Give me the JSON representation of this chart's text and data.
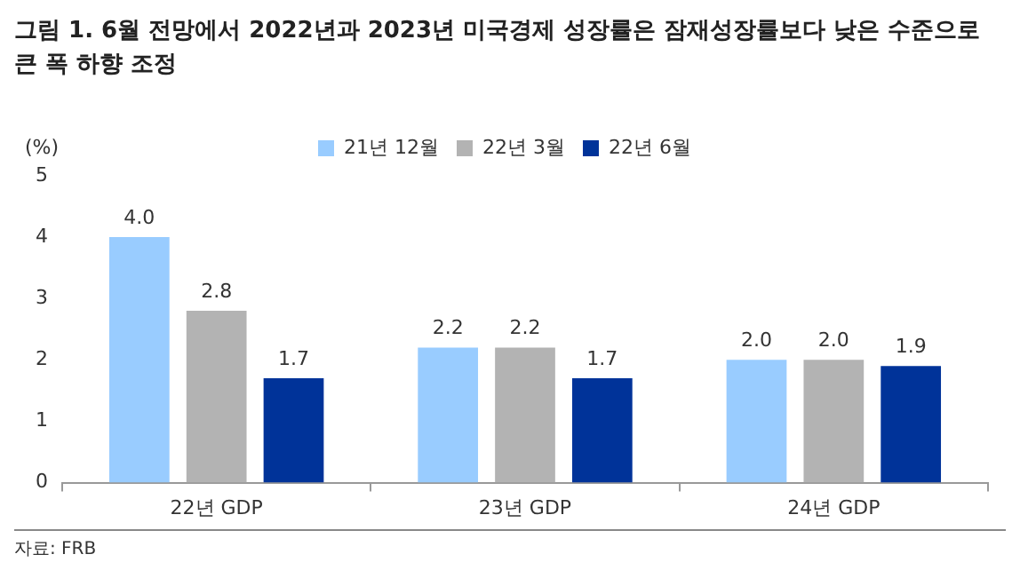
{
  "chart_data": {
    "type": "bar",
    "title": "그림 1. 6월 전망에서 2022년과 2023년 미국경제 성장률은 잠재성장률보다 낮은 수준으로 큰 폭 하향 조정",
    "ylabel": "(%)",
    "categories": [
      "22년 GDP",
      "23년 GDP",
      "24년 GDP"
    ],
    "series": [
      {
        "name": "21년 12월",
        "color": "#99ccff",
        "values": [
          4.0,
          2.2,
          2.0
        ],
        "value_labels": [
          "4.0",
          "2.2",
          "2.0"
        ]
      },
      {
        "name": "22년 3월",
        "color": "#b3b3b3",
        "values": [
          2.8,
          2.2,
          2.0
        ],
        "value_labels": [
          "2.8",
          "2.2",
          "2.0"
        ]
      },
      {
        "name": "22년 6월",
        "color": "#003399",
        "values": [
          1.7,
          1.7,
          1.9
        ],
        "value_labels": [
          "1.7",
          "1.7",
          "1.9"
        ]
      }
    ],
    "ylim": [
      0,
      5
    ],
    "yticks": [
      0,
      1,
      2,
      3,
      4,
      5
    ],
    "grid": false,
    "legend": "top",
    "annotations": [
      "자료: FRB"
    ]
  }
}
